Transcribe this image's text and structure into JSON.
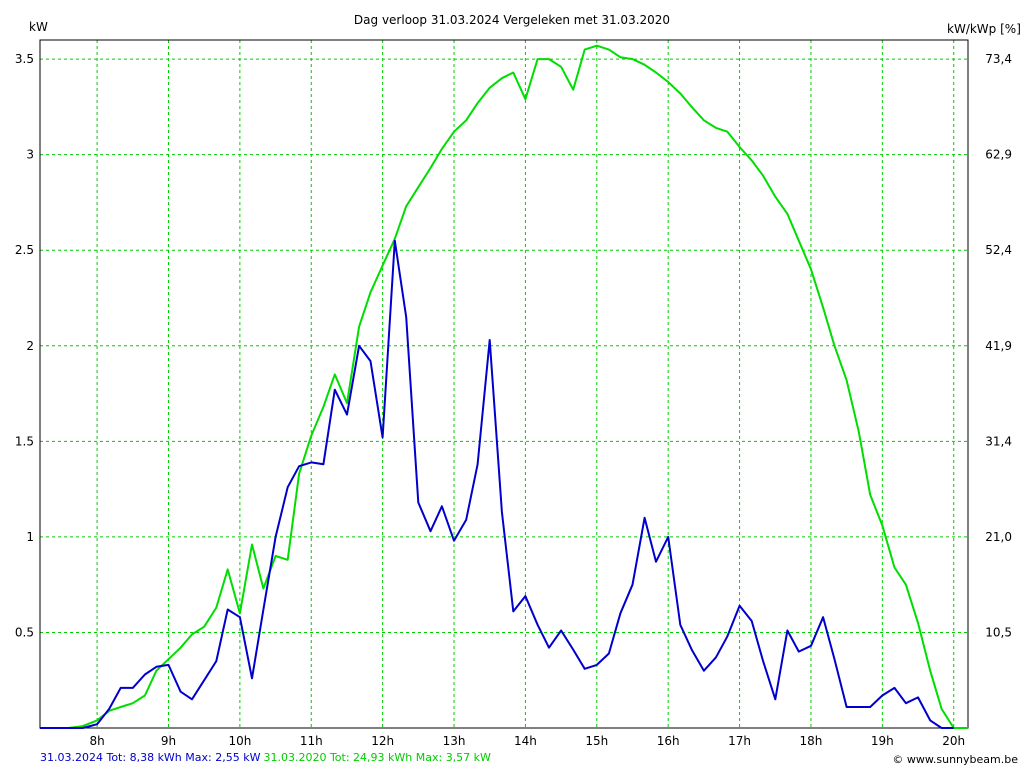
{
  "chart_data": {
    "type": "line",
    "title": "Dag  verloop 31.03.2024   Vergeleken met 31.03.2020",
    "ylabel_left": "kW",
    "ylabel_right": "kW/kWp [%]",
    "ylim": [
      0,
      3.6
    ],
    "xlim": [
      7.2,
      20.2
    ],
    "x_ticks": [
      "8h",
      "9h",
      "10h",
      "11h",
      "12h",
      "13h",
      "14h",
      "15h",
      "16h",
      "17h",
      "18h",
      "19h",
      "20h"
    ],
    "y_ticks_left": [
      "0.5",
      "1",
      "1.5",
      "2",
      "2.5",
      "3",
      "3.5"
    ],
    "y_ticks_right": [
      "10,5",
      "21,0",
      "31,4",
      "41,9",
      "52,4",
      "62,9",
      "73,4"
    ],
    "grid": true,
    "series": [
      {
        "name": "31.03.2024",
        "color": "#0000cc",
        "x": [
          7.2,
          7.6,
          7.8,
          7.9,
          8.0,
          8.17,
          8.33,
          8.5,
          8.67,
          8.83,
          9.0,
          9.17,
          9.33,
          9.5,
          9.67,
          9.83,
          10.0,
          10.17,
          10.33,
          10.5,
          10.67,
          10.83,
          11.0,
          11.17,
          11.33,
          11.5,
          11.67,
          11.83,
          12.0,
          12.17,
          12.33,
          12.5,
          12.67,
          12.83,
          13.0,
          13.17,
          13.33,
          13.5,
          13.67,
          13.83,
          14.0,
          14.17,
          14.33,
          14.5,
          14.67,
          14.83,
          15.0,
          15.17,
          15.33,
          15.5,
          15.67,
          15.83,
          16.0,
          16.17,
          16.33,
          16.5,
          16.67,
          16.83,
          17.0,
          17.17,
          17.33,
          17.5,
          17.67,
          17.83,
          18.0,
          18.17,
          18.33,
          18.5,
          18.67,
          18.83,
          19.0,
          19.17,
          19.33,
          19.5,
          19.67,
          19.83,
          20.0
        ],
        "values": [
          0,
          0,
          0,
          0.01,
          0.02,
          0.1,
          0.21,
          0.21,
          0.28,
          0.32,
          0.33,
          0.19,
          0.15,
          0.25,
          0.35,
          0.62,
          0.58,
          0.26,
          0.62,
          1.0,
          1.26,
          1.37,
          1.39,
          1.38,
          1.77,
          1.64,
          2.0,
          1.92,
          1.52,
          2.55,
          2.15,
          1.18,
          1.03,
          1.16,
          0.98,
          1.09,
          1.38,
          2.03,
          1.13,
          0.61,
          0.69,
          0.54,
          0.42,
          0.51,
          0.41,
          0.31,
          0.33,
          0.39,
          0.6,
          0.75,
          1.1,
          0.87,
          1.0,
          0.54,
          0.41,
          0.3,
          0.37,
          0.48,
          0.64,
          0.56,
          0.35,
          0.15,
          0.51,
          0.4,
          0.43,
          0.58,
          0.36,
          0.11,
          0.11,
          0.11,
          0.17,
          0.21,
          0.13,
          0.16,
          0.04,
          0.0,
          0.0
        ]
      },
      {
        "name": "31.03.2020",
        "color": "#00dd00",
        "x": [
          7.2,
          7.6,
          7.8,
          8.0,
          8.17,
          8.33,
          8.5,
          8.67,
          8.83,
          9.0,
          9.17,
          9.33,
          9.5,
          9.67,
          9.83,
          10.0,
          10.17,
          10.33,
          10.5,
          10.67,
          10.83,
          11.0,
          11.17,
          11.33,
          11.5,
          11.67,
          11.83,
          12.0,
          12.17,
          12.33,
          12.5,
          12.67,
          12.83,
          13.0,
          13.17,
          13.33,
          13.5,
          13.67,
          13.83,
          14.0,
          14.17,
          14.33,
          14.5,
          14.67,
          14.83,
          15.0,
          15.17,
          15.33,
          15.5,
          15.67,
          15.83,
          16.0,
          16.17,
          16.33,
          16.5,
          16.67,
          16.83,
          17.0,
          17.17,
          17.33,
          17.5,
          17.67,
          17.83,
          18.0,
          18.17,
          18.33,
          18.5,
          18.67,
          18.83,
          19.0,
          19.17,
          19.33,
          19.5,
          19.67,
          19.83,
          20.0,
          20.2
        ],
        "values": [
          0,
          0,
          0.01,
          0.04,
          0.09,
          0.11,
          0.13,
          0.17,
          0.3,
          0.36,
          0.42,
          0.49,
          0.53,
          0.63,
          0.83,
          0.6,
          0.96,
          0.73,
          0.9,
          0.88,
          1.33,
          1.53,
          1.68,
          1.85,
          1.7,
          2.1,
          2.28,
          2.42,
          2.56,
          2.73,
          2.83,
          2.93,
          3.03,
          3.12,
          3.18,
          3.27,
          3.35,
          3.4,
          3.43,
          3.29,
          3.5,
          3.5,
          3.46,
          3.34,
          3.55,
          3.57,
          3.55,
          3.51,
          3.5,
          3.47,
          3.43,
          3.38,
          3.32,
          3.25,
          3.18,
          3.14,
          3.12,
          3.04,
          2.97,
          2.89,
          2.78,
          2.69,
          2.55,
          2.4,
          2.2,
          2.0,
          1.82,
          1.55,
          1.22,
          1.06,
          0.84,
          0.75,
          0.55,
          0.3,
          0.1,
          0.0,
          0.0
        ]
      }
    ]
  },
  "legend": {
    "line_2024": "31.03.2024 Tot: 8,38 kWh Max: 2,55 kW",
    "line_2020": "31.03.2020 Tot: 24,93 kWh Max: 3,57 kW"
  },
  "credit": "© www.sunnybeam.be"
}
